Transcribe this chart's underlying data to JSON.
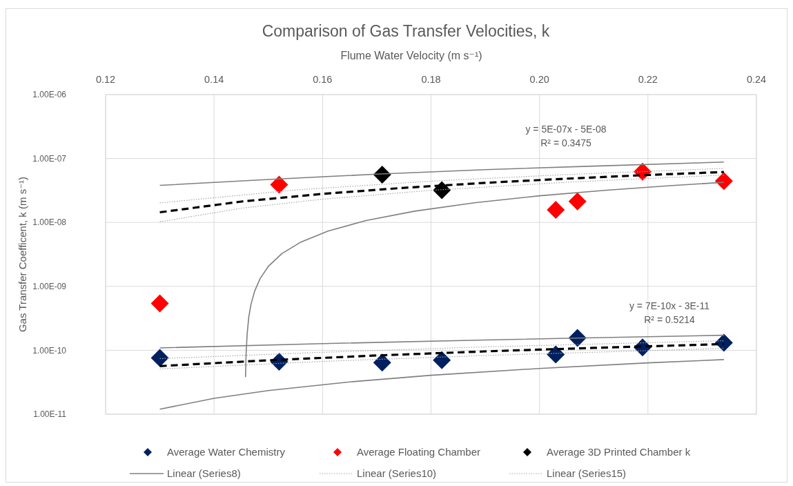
{
  "chart_data": {
    "type": "scatter",
    "title": "Comparison of Gas Transfer Velocities, k",
    "xlabel": "Flume Water Velocity (m s⁻¹)",
    "ylabel": "Gas Transfer Coefficent, k (m s⁻¹)",
    "xlim": [
      0.12,
      0.24
    ],
    "xticks": [
      {
        "value": 0.12,
        "label": "0.12"
      },
      {
        "value": 0.14,
        "label": "0.14"
      },
      {
        "value": 0.16,
        "label": "0.16"
      },
      {
        "value": 0.18,
        "label": "0.18"
      },
      {
        "value": 0.2,
        "label": "0.20"
      },
      {
        "value": 0.22,
        "label": "0.22"
      },
      {
        "value": 0.24,
        "label": "0.24"
      }
    ],
    "ylim": [
      1e-11,
      1e-06
    ],
    "yticks": [
      {
        "value": 1e-11,
        "label": "1.00E-11"
      },
      {
        "value": 1e-10,
        "label": "1.00E-10"
      },
      {
        "value": 1e-09,
        "label": "1.00E-09"
      },
      {
        "value": 1e-08,
        "label": "1.00E-08"
      },
      {
        "value": 1e-07,
        "label": "1.00E-07"
      },
      {
        "value": 1e-06,
        "label": "1.00E-06"
      }
    ],
    "log": "y",
    "grid": true,
    "legend": "bottom",
    "annotations": [
      "y = 5E-07x - 5E-08",
      "R² = 0.3475",
      "y = 7E-10x - 3E-11",
      "R² = 0.5214"
    ],
    "series": [
      {
        "name": "Average Water Chemistry",
        "marker": "diamond",
        "color": "#002060",
        "x": [
          0.13,
          0.152,
          0.171,
          0.182,
          0.203,
          0.207,
          0.219,
          0.234
        ],
        "values": [
          7.6e-11,
          6.6e-11,
          6.4e-11,
          7e-11,
          8.6e-11,
          1.56e-10,
          1.11e-10,
          1.31e-10
        ]
      },
      {
        "name": "Average Floating Chamber",
        "marker": "diamond",
        "color": "#ff0000",
        "x": [
          0.13,
          0.152,
          0.203,
          0.207,
          0.219,
          0.234
        ],
        "values": [
          5.4e-10,
          3.9e-08,
          1.57e-08,
          2.13e-08,
          6.2e-08,
          4.45e-08
        ]
      },
      {
        "name": "Average 3D Printed Chamber k",
        "marker": "diamond",
        "color": "#000000",
        "x": [
          0.171,
          0.182
        ],
        "values": [
          5.6e-08,
          3.2e-08
        ]
      },
      {
        "name": "Linear (Series8)",
        "type": "line",
        "line_style": "solid",
        "color": "#7f7f7f",
        "x": [
          0.13,
          0.15,
          0.17,
          0.19,
          0.21,
          0.234
        ],
        "values": [
          3.8e-08,
          4.7e-08,
          5.7e-08,
          6.7e-08,
          7.6e-08,
          8.8e-08
        ]
      },
      {
        "name": "Linear (Series10)",
        "type": "line",
        "line_style": "dotted",
        "color": "#a6a6a6",
        "x": [
          0.13,
          0.155,
          0.18,
          0.205,
          0.234
        ],
        "values": [
          2.02e-08,
          3.22e-08,
          4.42e-08,
          5.61e-08,
          7e-08
        ]
      },
      {
        "name": "Linear (Series15)",
        "type": "line",
        "line_style": "dotted",
        "color": "#a6a6a6",
        "x": [
          0.13,
          0.16,
          0.19,
          0.234
        ],
        "values": [
          7.4e-11,
          9.3e-11,
          1.13e-10,
          1.41e-10
        ]
      },
      {
        "type": "line",
        "line_style": "dotted",
        "color": "#a6a6a6",
        "x": [
          0.13,
          0.145,
          0.16,
          0.18,
          0.205,
          0.234
        ],
        "values": [
          1.02e-08,
          1.67e-08,
          2.31e-08,
          3.18e-08,
          4.25e-08,
          5.5e-08
        ]
      },
      {
        "type": "line",
        "line_style": "dotted",
        "color": "#a6a6a6",
        "x": [
          0.13,
          0.16,
          0.19,
          0.234
        ],
        "values": [
          5.1e-11,
          6.7e-11,
          8.3e-11,
          1.07e-10
        ]
      },
      {
        "type": "line",
        "line_style": "solid",
        "color": "#7f7f7f",
        "x": [
          0.1458,
          0.1459,
          0.1461,
          0.1464,
          0.1468,
          0.1475,
          0.1485,
          0.15,
          0.1525,
          0.156,
          0.161,
          0.168,
          0.177,
          0.188,
          0.2,
          0.212,
          0.224,
          0.234
        ],
        "values": [
          3.8e-11,
          8.6e-11,
          1.8e-10,
          3.3e-10,
          5.2e-10,
          8.5e-10,
          1.33e-09,
          2.05e-09,
          3.25e-09,
          4.93e-09,
          7.33e-09,
          1.07e-08,
          1.5e-08,
          2.03e-08,
          2.61e-08,
          3.18e-08,
          3.76e-08,
          4.24e-08
        ]
      },
      {
        "type": "line",
        "line_style": "solid",
        "color": "#7f7f7f",
        "x": [
          0.13,
          0.16,
          0.19,
          0.21,
          0.234
        ],
        "values": [
          1.09e-10,
          1.27e-10,
          1.45e-10,
          1.57e-10,
          1.72e-10
        ]
      },
      {
        "type": "line",
        "line_style": "solid",
        "color": "#7f7f7f",
        "x": [
          0.13,
          0.14,
          0.15,
          0.165,
          0.18,
          0.2,
          0.22,
          0.234
        ],
        "values": [
          1.2e-11,
          1.77e-11,
          2.34e-11,
          3.2e-11,
          4.06e-11,
          5.2e-11,
          6.35e-11,
          7.15e-11
        ]
      },
      {
        "type": "line",
        "line_style": "dashed",
        "color": "#000000",
        "x": [
          0.13,
          0.145,
          0.16,
          0.175,
          0.19,
          0.205,
          0.22,
          0.234
        ],
        "values": [
          1.44e-08,
          2.12e-08,
          2.8e-08,
          3.48e-08,
          4.16e-08,
          4.84e-08,
          5.52e-08,
          6.15e-08
        ]
      },
      {
        "type": "line",
        "line_style": "dashed",
        "color": "#000000",
        "x": [
          0.13,
          0.15,
          0.17,
          0.19,
          0.21,
          0.234
        ],
        "values": [
          5.66e-11,
          6.98e-11,
          8.29e-11,
          9.61e-11,
          1.09e-10,
          1.25e-10
        ]
      }
    ]
  }
}
